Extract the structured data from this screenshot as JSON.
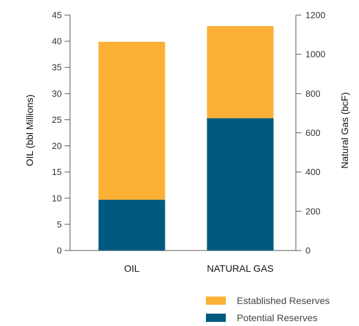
{
  "chart_data": {
    "type": "bar",
    "stacked": true,
    "categories": [
      "OIL",
      "NATURAL GAS"
    ],
    "series": [
      {
        "name": "Potential Reserves",
        "color": "#005a7f",
        "values_left_axis": [
          9.7,
          25.3
        ]
      },
      {
        "name": "Established Reserves",
        "color": "#fdb036",
        "values_left_axis": [
          30.2,
          17.6
        ]
      }
    ],
    "totals_left_axis": [
      39.9,
      42.9
    ],
    "ylabel": "OIL (bbl Millions)",
    "ylabel_right": "Natural Gas (bcF)",
    "ylim": [
      0,
      45
    ],
    "ylim_right": [
      0,
      1200
    ],
    "yticks": [
      "0",
      "5",
      "10",
      "15",
      "20",
      "25",
      "30",
      "35",
      "40",
      "45"
    ],
    "yticks_right": [
      "0",
      "200",
      "400",
      "600",
      "800",
      "1000",
      "1200"
    ],
    "legend_entries": [
      "Established Reserves",
      "Potential Reserves"
    ],
    "legend_position": "bottom-right",
    "grid": false
  }
}
